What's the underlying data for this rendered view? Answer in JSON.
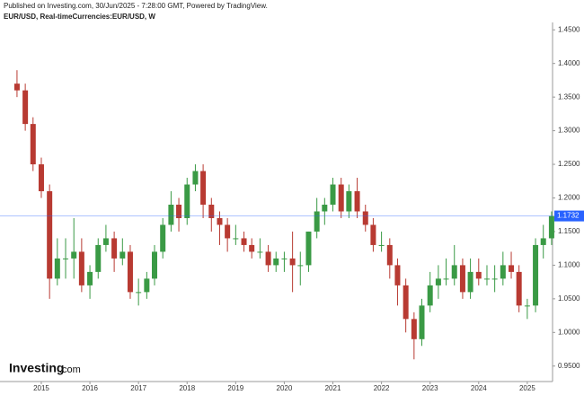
{
  "header": {
    "published": "Published on Investing.com, 30/Jun/2025 - 7:28:00 GMT, Powered by TradingView.",
    "symbol": "EUR/USD, Real-timeCurrencies:EUR/USD, W"
  },
  "logo": {
    "brand": "Investing",
    "suffix": ".com"
  },
  "chart_data": {
    "type": "candlestick",
    "x": [
      2014.5,
      2014.67,
      2014.83,
      2015.0,
      2015.17,
      2015.33,
      2015.5,
      2015.67,
      2015.83,
      2016.0,
      2016.17,
      2016.33,
      2016.5,
      2016.67,
      2016.83,
      2017.0,
      2017.17,
      2017.33,
      2017.5,
      2017.67,
      2017.83,
      2018.0,
      2018.17,
      2018.33,
      2018.5,
      2018.67,
      2018.83,
      2019.0,
      2019.17,
      2019.33,
      2019.5,
      2019.67,
      2019.83,
      2020.0,
      2020.17,
      2020.33,
      2020.5,
      2020.67,
      2020.83,
      2021.0,
      2021.17,
      2021.33,
      2021.5,
      2021.67,
      2021.83,
      2022.0,
      2022.17,
      2022.33,
      2022.5,
      2022.67,
      2022.83,
      2023.0,
      2023.17,
      2023.33,
      2023.5,
      2023.67,
      2023.83,
      2024.0,
      2024.17,
      2024.33,
      2024.5,
      2024.67,
      2024.83,
      2025.0,
      2025.17,
      2025.33,
      2025.5
    ],
    "open": [
      1.37,
      1.36,
      1.31,
      1.25,
      1.21,
      1.08,
      1.11,
      1.11,
      1.12,
      1.07,
      1.09,
      1.13,
      1.14,
      1.11,
      1.12,
      1.06,
      1.06,
      1.08,
      1.12,
      1.16,
      1.19,
      1.17,
      1.22,
      1.24,
      1.19,
      1.17,
      1.16,
      1.14,
      1.14,
      1.13,
      1.12,
      1.12,
      1.1,
      1.11,
      1.11,
      1.1,
      1.1,
      1.15,
      1.18,
      1.19,
      1.22,
      1.18,
      1.21,
      1.18,
      1.16,
      1.13,
      1.13,
      1.1,
      1.07,
      1.02,
      0.99,
      1.04,
      1.07,
      1.08,
      1.08,
      1.1,
      1.06,
      1.09,
      1.08,
      1.08,
      1.08,
      1.1,
      1.09,
      1.04,
      1.04,
      1.13,
      1.14
    ],
    "high": [
      1.39,
      1.37,
      1.32,
      1.26,
      1.22,
      1.14,
      1.14,
      1.17,
      1.14,
      1.1,
      1.14,
      1.16,
      1.15,
      1.14,
      1.13,
      1.08,
      1.09,
      1.13,
      1.17,
      1.21,
      1.2,
      1.23,
      1.25,
      1.25,
      1.2,
      1.18,
      1.17,
      1.16,
      1.15,
      1.14,
      1.14,
      1.13,
      1.12,
      1.12,
      1.15,
      1.12,
      1.15,
      1.2,
      1.2,
      1.23,
      1.23,
      1.22,
      1.23,
      1.19,
      1.17,
      1.15,
      1.14,
      1.11,
      1.08,
      1.03,
      1.05,
      1.09,
      1.1,
      1.11,
      1.13,
      1.11,
      1.11,
      1.11,
      1.1,
      1.1,
      1.12,
      1.12,
      1.1,
      1.05,
      1.14,
      1.16,
      1.18
    ],
    "low": [
      1.35,
      1.3,
      1.24,
      1.2,
      1.05,
      1.07,
      1.08,
      1.08,
      1.06,
      1.05,
      1.08,
      1.12,
      1.09,
      1.1,
      1.05,
      1.04,
      1.05,
      1.07,
      1.11,
      1.15,
      1.15,
      1.16,
      1.21,
      1.17,
      1.15,
      1.13,
      1.12,
      1.13,
      1.12,
      1.11,
      1.11,
      1.09,
      1.09,
      1.09,
      1.06,
      1.07,
      1.09,
      1.14,
      1.16,
      1.18,
      1.17,
      1.17,
      1.17,
      1.15,
      1.12,
      1.12,
      1.08,
      1.04,
      1.0,
      0.96,
      0.98,
      1.03,
      1.05,
      1.07,
      1.07,
      1.05,
      1.05,
      1.07,
      1.07,
      1.06,
      1.07,
      1.08,
      1.03,
      1.02,
      1.03,
      1.11,
      1.13
    ],
    "close": [
      1.36,
      1.31,
      1.25,
      1.21,
      1.08,
      1.11,
      1.11,
      1.12,
      1.07,
      1.09,
      1.13,
      1.14,
      1.11,
      1.12,
      1.06,
      1.06,
      1.08,
      1.12,
      1.16,
      1.19,
      1.17,
      1.22,
      1.24,
      1.19,
      1.17,
      1.16,
      1.14,
      1.14,
      1.13,
      1.12,
      1.12,
      1.1,
      1.11,
      1.11,
      1.1,
      1.1,
      1.15,
      1.18,
      1.19,
      1.22,
      1.18,
      1.21,
      1.18,
      1.16,
      1.13,
      1.13,
      1.1,
      1.07,
      1.02,
      0.99,
      1.04,
      1.07,
      1.08,
      1.08,
      1.1,
      1.06,
      1.09,
      1.08,
      1.08,
      1.08,
      1.1,
      1.09,
      1.04,
      1.04,
      1.13,
      1.14,
      1.1732
    ],
    "up_color": "#3a9a45",
    "down_color": "#b83a32",
    "last_price": 1.1732,
    "last_price_color": "#2962ff",
    "xlim": [
      2014.15,
      2025.52
    ],
    "xticks": [
      2015,
      2016,
      2017,
      2018,
      2019,
      2020,
      2021,
      2022,
      2023,
      2024,
      2025
    ],
    "ylim": [
      0.927,
      1.461
    ],
    "yticks": [
      {
        "value": 0.95,
        "label": "0.9500"
      },
      {
        "value": 1.0,
        "label": "1.0000"
      },
      {
        "value": 1.05,
        "label": "1.0500"
      },
      {
        "value": 1.1,
        "label": "1.1000"
      },
      {
        "value": 1.15,
        "label": "1.1500"
      },
      {
        "value": 1.2,
        "label": "1.2000"
      },
      {
        "value": 1.25,
        "label": "1.2500"
      },
      {
        "value": 1.3,
        "label": "1.3000"
      },
      {
        "value": 1.35,
        "label": "1.3500"
      },
      {
        "value": 1.4,
        "label": "1.4000"
      },
      {
        "value": 1.45,
        "label": "1.4500"
      }
    ],
    "grid": false
  }
}
